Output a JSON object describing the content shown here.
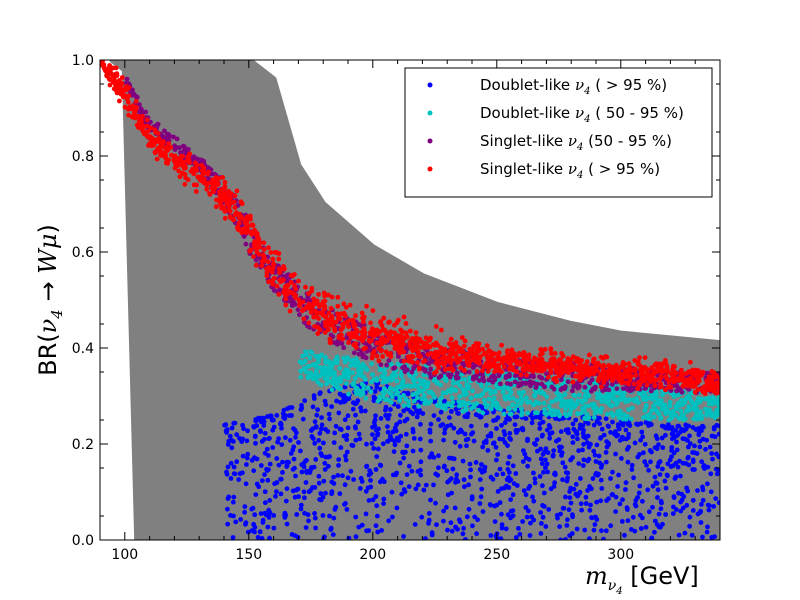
{
  "chart_data": {
    "type": "scatter",
    "xlabel": "m_{ν4} [GeV]",
    "ylabel": "BR(ν4 → Wμ)",
    "xlim": [
      90,
      340
    ],
    "ylim": [
      0.0,
      1.0
    ],
    "x_ticks": [
      100,
      150,
      200,
      250,
      300
    ],
    "y_ticks": [
      0.0,
      0.2,
      0.4,
      0.6,
      0.8,
      1.0
    ],
    "x_tick_labels": [
      "100",
      "150",
      "200",
      "250",
      "300"
    ],
    "y_tick_labels": [
      "0.0",
      "0.2",
      "0.4",
      "0.6",
      "0.8",
      "1.0"
    ],
    "grid": false,
    "legend_position": "top-right",
    "background_region": {
      "color": "#808080",
      "boundary_x": [
        95,
        100,
        105,
        110,
        120,
        130,
        140,
        150,
        160,
        170,
        180,
        200,
        220,
        250,
        280,
        300,
        320,
        340
      ],
      "upper": [
        1.0,
        1.0,
        1.0,
        1.0,
        1.0,
        1.0,
        1.0,
        1.0,
        0.96,
        0.78,
        0.7,
        0.61,
        0.55,
        0.49,
        0.45,
        0.43,
        0.42,
        0.41
      ],
      "lower": [
        1.0,
        0.98,
        0.0,
        0.0,
        0.0,
        0.0,
        0.0,
        0.0,
        0.0,
        0.0,
        0.0,
        0.0,
        0.0,
        0.0,
        0.0,
        0.0,
        0.0,
        0.0
      ]
    },
    "series": [
      {
        "name": "Doublet-like ν4 ( > 95 %)",
        "legend_prefix": "Doublet-like ",
        "legend_suffix": " ( > 95 %)",
        "color": "#0000ff",
        "band_x": [
          140,
          160,
          180,
          200,
          220,
          240,
          260,
          280,
          300,
          320,
          340
        ],
        "band_upper": [
          0.24,
          0.26,
          0.31,
          0.33,
          0.3,
          0.28,
          0.27,
          0.26,
          0.25,
          0.24,
          0.24
        ],
        "band_lower": [
          0.0,
          0.0,
          0.0,
          0.0,
          0.0,
          0.0,
          0.0,
          0.0,
          0.0,
          0.0,
          0.0
        ]
      },
      {
        "name": "Doublet-like ν4 ( 50 - 95 %)",
        "legend_prefix": "Doublet-like ",
        "legend_suffix": " ( 50 - 95 %)",
        "color": "#00bfbf",
        "band_x": [
          170,
          190,
          210,
          230,
          250,
          270,
          290,
          310,
          330,
          340
        ],
        "band_upper": [
          0.4,
          0.38,
          0.37,
          0.36,
          0.35,
          0.34,
          0.33,
          0.32,
          0.31,
          0.3
        ],
        "band_lower": [
          0.34,
          0.3,
          0.28,
          0.27,
          0.26,
          0.26,
          0.25,
          0.25,
          0.25,
          0.25
        ]
      },
      {
        "name": "Singlet-like ν4 (50 - 95 %)",
        "legend_prefix": "Singlet-like ",
        "legend_suffix": " (50 - 95 %)",
        "color": "#800080",
        "band_x": [
          100,
          110,
          120,
          130,
          140,
          150,
          160,
          170,
          180,
          200,
          220,
          240,
          260,
          280,
          300,
          320,
          340
        ],
        "band_upper": [
          0.97,
          0.88,
          0.84,
          0.8,
          0.75,
          0.67,
          0.59,
          0.53,
          0.49,
          0.44,
          0.41,
          0.39,
          0.38,
          0.37,
          0.36,
          0.35,
          0.35
        ],
        "band_lower": [
          0.95,
          0.85,
          0.8,
          0.76,
          0.7,
          0.6,
          0.52,
          0.46,
          0.42,
          0.37,
          0.34,
          0.33,
          0.32,
          0.31,
          0.31,
          0.31,
          0.3
        ]
      },
      {
        "name": "Singlet-like ν4 ( > 95 %)",
        "legend_prefix": "Singlet-like ",
        "legend_suffix": " ( > 95 %)",
        "color": "#ff0000",
        "band_x": [
          90,
          100,
          110,
          120,
          130,
          140,
          150,
          160,
          170,
          180,
          200,
          220,
          240,
          260,
          280,
          300,
          320,
          340
        ],
        "band_center": [
          1.0,
          0.93,
          0.84,
          0.79,
          0.76,
          0.72,
          0.64,
          0.56,
          0.5,
          0.47,
          0.43,
          0.4,
          0.38,
          0.37,
          0.36,
          0.35,
          0.34,
          0.33
        ],
        "band_width": [
          0.01,
          0.02,
          0.02,
          0.02,
          0.02,
          0.03,
          0.03,
          0.03,
          0.03,
          0.03,
          0.03,
          0.03,
          0.02,
          0.02,
          0.02,
          0.02,
          0.02,
          0.02
        ]
      }
    ]
  }
}
